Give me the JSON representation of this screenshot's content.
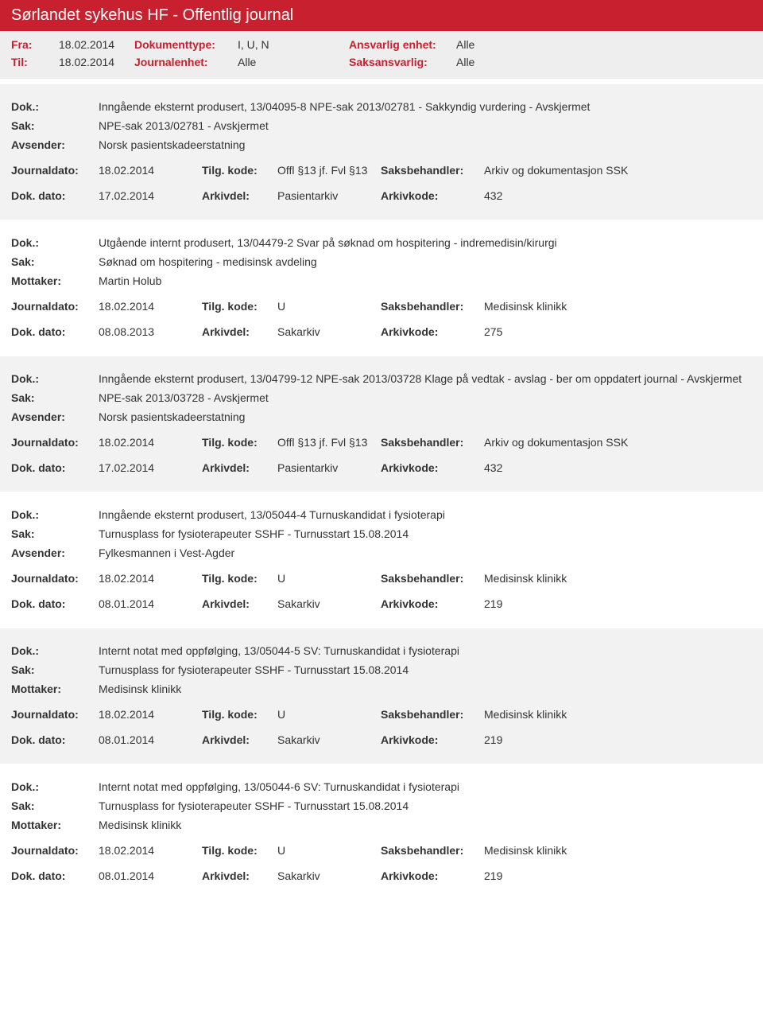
{
  "header": {
    "title": "Sørlandet sykehus HF - Offentlig journal"
  },
  "filter": {
    "fra_label": "Fra:",
    "fra_value": "18.02.2014",
    "til_label": "Til:",
    "til_value": "18.02.2014",
    "doktype_label": "Dokumenttype:",
    "doktype_value": "I, U, N",
    "journalenhet_label": "Journalenhet:",
    "journalenhet_value": "Alle",
    "ansvarlig_label": "Ansvarlig enhet:",
    "ansvarlig_value": "Alle",
    "saksansvarlig_label": "Saksansvarlig:",
    "saksansvarlig_value": "Alle"
  },
  "labels": {
    "dok": "Dok.:",
    "sak": "Sak:",
    "avsender": "Avsender:",
    "mottaker": "Mottaker:",
    "journaldato": "Journaldato:",
    "dokdato": "Dok. dato:",
    "tilgkode": "Tilg. kode:",
    "arkivdel": "Arkivdel:",
    "saksbehandler": "Saksbehandler:",
    "arkivkode": "Arkivkode:"
  },
  "entries": [
    {
      "dok": "Inngående eksternt produsert, 13/04095-8 NPE-sak 2013/02781 - Sakkyndig vurdering - Avskjermet",
      "sak": "NPE-sak 2013/02781 - Avskjermet",
      "party_label": "Avsender:",
      "party": "Norsk pasientskadeerstatning",
      "journaldato": "18.02.2014",
      "tilgkode": "Offl §13 jf. Fvl §13",
      "saksbehandler": "Arkiv og dokumentasjon SSK",
      "dokdato": "17.02.2014",
      "arkivdel": "Pasientarkiv",
      "arkivkode": "432"
    },
    {
      "dok": "Utgående internt produsert, 13/04479-2 Svar på søknad om hospitering - indremedisin/kirurgi",
      "sak": "Søknad om hospitering - medisinsk avdeling",
      "party_label": "Mottaker:",
      "party": "Martin Holub",
      "journaldato": "18.02.2014",
      "tilgkode": "U",
      "saksbehandler": "Medisinsk klinikk",
      "dokdato": "08.08.2013",
      "arkivdel": "Sakarkiv",
      "arkivkode": "275"
    },
    {
      "dok": "Inngående eksternt produsert, 13/04799-12 NPE-sak 2013/03728 Klage på vedtak - avslag - ber om oppdatert journal - Avskjermet",
      "sak": "NPE-sak 2013/03728 - Avskjermet",
      "party_label": "Avsender:",
      "party": "Norsk pasientskadeerstatning",
      "journaldato": "18.02.2014",
      "tilgkode": "Offl §13 jf. Fvl §13",
      "saksbehandler": "Arkiv og dokumentasjon SSK",
      "dokdato": "17.02.2014",
      "arkivdel": "Pasientarkiv",
      "arkivkode": "432"
    },
    {
      "dok": "Inngående eksternt produsert, 13/05044-4 Turnuskandidat i fysioterapi",
      "sak": "Turnusplass for fysioterapeuter SSHF - Turnusstart 15.08.2014",
      "party_label": "Avsender:",
      "party": "Fylkesmannen i Vest-Agder",
      "journaldato": "18.02.2014",
      "tilgkode": "U",
      "saksbehandler": "Medisinsk klinikk",
      "dokdato": "08.01.2014",
      "arkivdel": "Sakarkiv",
      "arkivkode": "219"
    },
    {
      "dok": "Internt notat med oppfølging, 13/05044-5 SV: Turnuskandidat i fysioterapi",
      "sak": "Turnusplass for fysioterapeuter SSHF - Turnusstart 15.08.2014",
      "party_label": "Mottaker:",
      "party": "Medisinsk klinikk",
      "journaldato": "18.02.2014",
      "tilgkode": "U",
      "saksbehandler": "Medisinsk klinikk",
      "dokdato": "08.01.2014",
      "arkivdel": "Sakarkiv",
      "arkivkode": "219"
    },
    {
      "dok": "Internt notat med oppfølging, 13/05044-6 SV: Turnuskandidat i fysioterapi",
      "sak": "Turnusplass for fysioterapeuter SSHF - Turnusstart 15.08.2014",
      "party_label": "Mottaker:",
      "party": "Medisinsk klinikk",
      "journaldato": "18.02.2014",
      "tilgkode": "U",
      "saksbehandler": "Medisinsk klinikk",
      "dokdato": "08.01.2014",
      "arkivdel": "Sakarkiv",
      "arkivkode": "219"
    }
  ]
}
